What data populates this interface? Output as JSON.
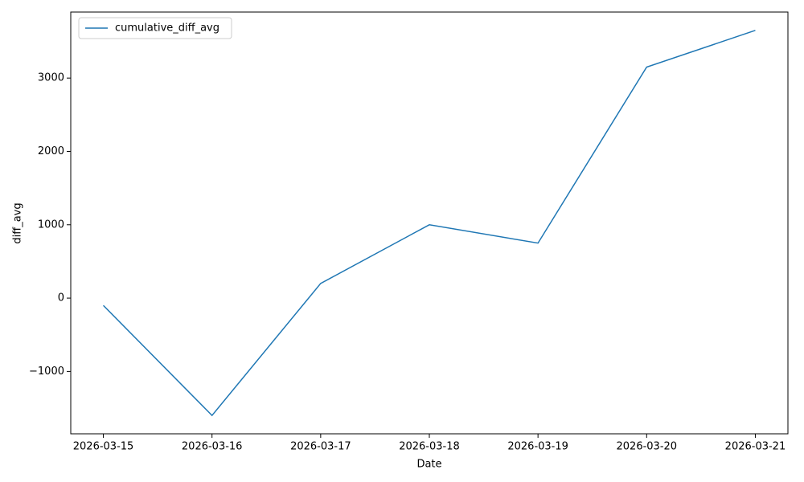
{
  "chart_data": {
    "type": "line",
    "categories": [
      "2026-03-15",
      "2026-03-16",
      "2026-03-17",
      "2026-03-18",
      "2026-03-19",
      "2026-03-20",
      "2026-03-21"
    ],
    "series": [
      {
        "name": "cumulative_diff_avg",
        "color": "#1f77b4",
        "values": [
          -100,
          -1600,
          200,
          1000,
          750,
          3150,
          3650
        ]
      }
    ],
    "xlabel": "Date",
    "ylabel": "diff_avg",
    "ylim": [
      -1850,
      3900
    ],
    "yticks": [
      {
        "value": -1000,
        "label": "−1000"
      },
      0,
      1000,
      2000,
      3000
    ],
    "legend": "upper left",
    "grid": false
  }
}
